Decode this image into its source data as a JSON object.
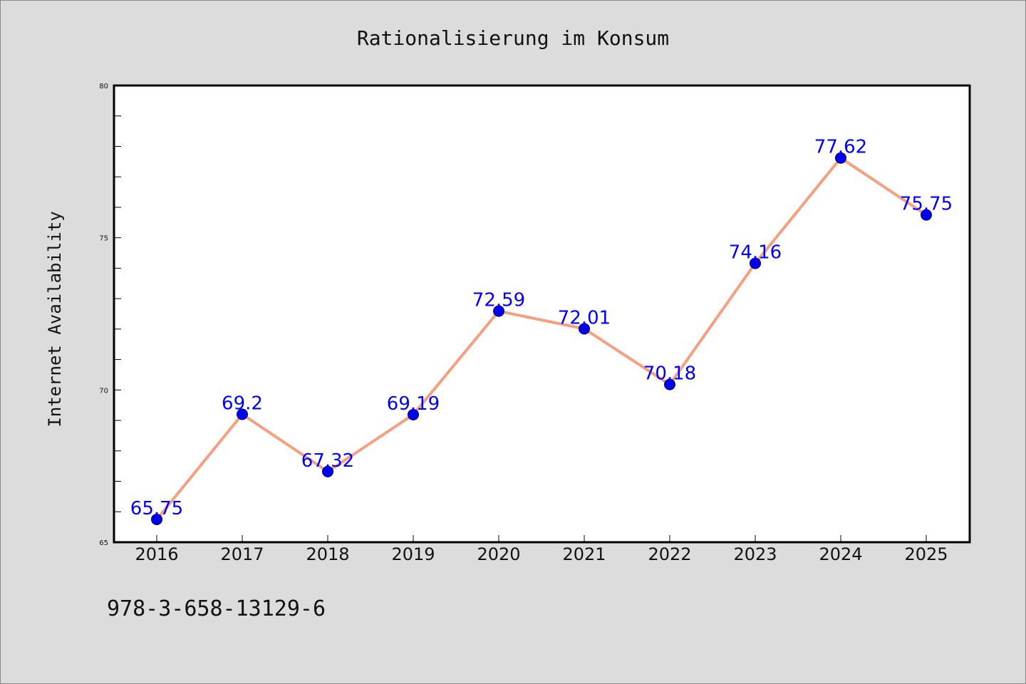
{
  "chart_data": {
    "type": "line",
    "title": "Rationalisierung im Konsum",
    "xlabel": "",
    "ylabel": "Internet Availability",
    "x": [
      "2016",
      "2017",
      "2018",
      "2019",
      "2020",
      "2021",
      "2022",
      "2023",
      "2024",
      "2025"
    ],
    "series": [
      {
        "values": [
          65.75,
          69.2,
          67.32,
          69.19,
          72.59,
          72.01,
          70.18,
          74.16,
          77.62,
          75.75
        ],
        "data_labels": [
          "65.75",
          "69.2",
          "67.32",
          "69.19",
          "72.59",
          "72.01",
          "70.18",
          "74.16",
          "77.62",
          "75.75"
        ]
      }
    ],
    "ylim": [
      65,
      80
    ],
    "y_major_ticks": [
      "65",
      "70",
      "75",
      "80"
    ],
    "y_minor_step": 1,
    "grid": false,
    "legend": "none",
    "colors": {
      "line": "#f4a081",
      "marker": "#0000ee",
      "data_label": "#0000ff",
      "plot_bg": "#ffffff",
      "page_bg": "#dcdcdc"
    }
  },
  "footnote": "978-3-658-13129-6"
}
